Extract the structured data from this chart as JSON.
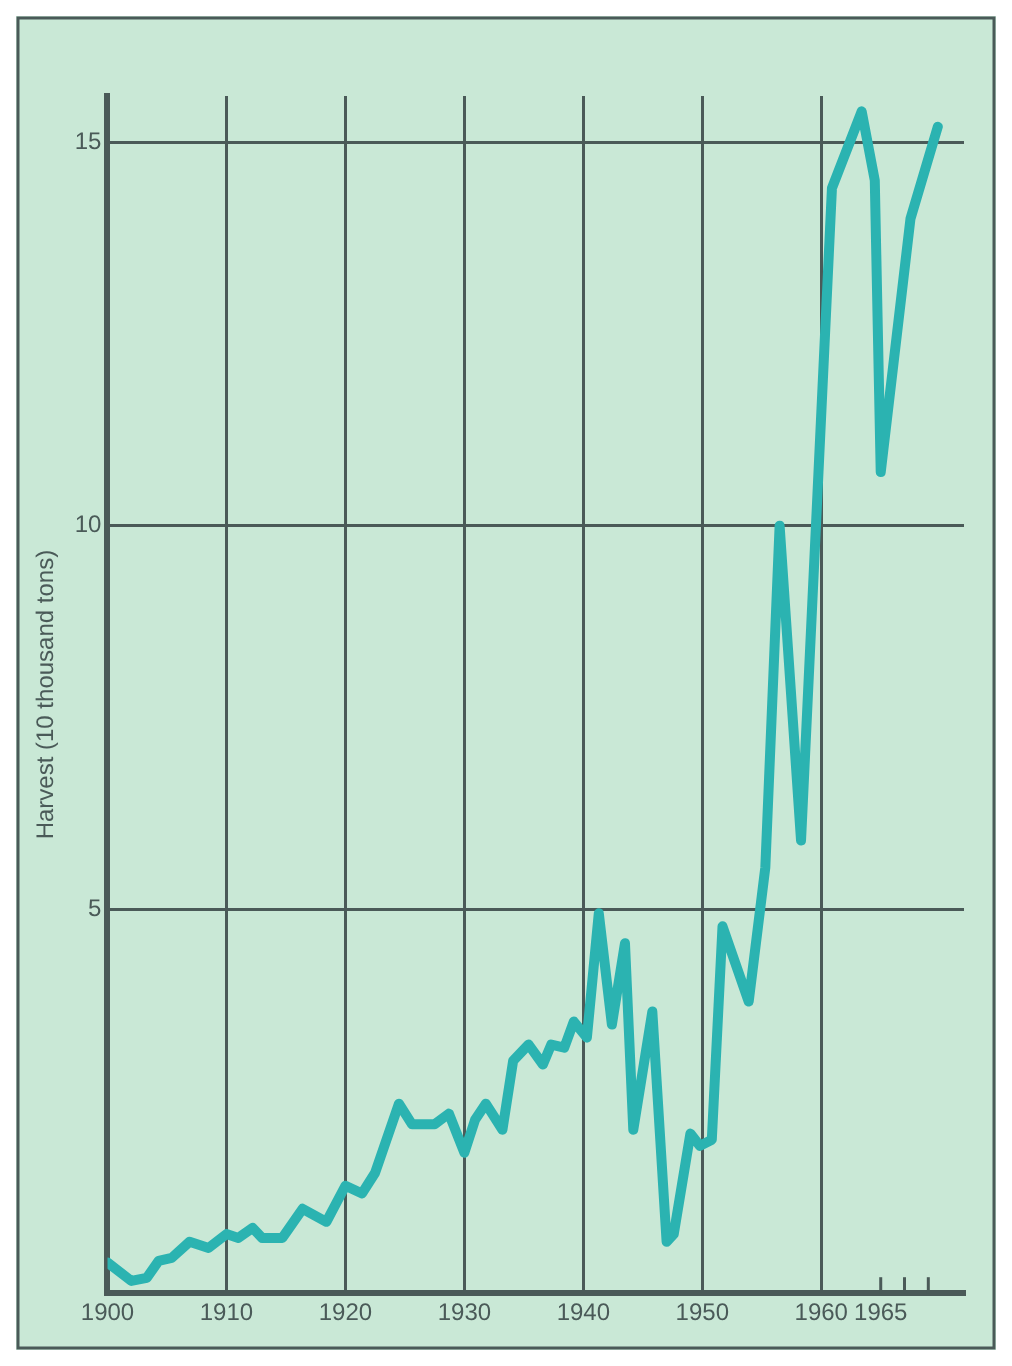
{
  "chart_data": {
    "type": "line",
    "ylabel": "Harvest (10 thousand tons)",
    "series": [
      {
        "color": "#2bb3b1",
        "x": [
          1900,
          1902,
          1903.3,
          1904.3,
          1905.4,
          1906.9,
          1908.5,
          1910,
          1911,
          1912.2,
          1913,
          1914.7,
          1916.4,
          1918.4,
          1920,
          1921.4,
          1922.5,
          1924.5,
          1925.6,
          1927.5,
          1928.7,
          1930,
          1930.9,
          1931.8,
          1933.2,
          1934.1,
          1935.4,
          1936.6,
          1937.3,
          1938.4,
          1939.2,
          1940.3,
          1941.3,
          1942.4,
          1943.5,
          1944.2,
          1945.8,
          1947,
          1947.6,
          1949,
          1949.8,
          1950.8,
          1951.7,
          1953.9,
          1955.3,
          1956.5,
          1958.3,
          1960.9,
          1963.4,
          1964.5,
          1965,
          1967.5,
          1969.8
        ],
        "values": [
          0.4,
          0.16,
          0.2,
          0.42,
          0.46,
          0.67,
          0.59,
          0.77,
          0.72,
          0.85,
          0.72,
          0.72,
          1.1,
          0.93,
          1.4,
          1.3,
          1.57,
          2.47,
          2.2,
          2.2,
          2.34,
          1.83,
          2.26,
          2.47,
          2.13,
          3.03,
          3.24,
          2.98,
          3.24,
          3.2,
          3.54,
          3.33,
          4.95,
          3.5,
          4.56,
          2.13,
          3.67,
          0.67,
          0.77,
          2.08,
          1.92,
          2.0,
          4.78,
          3.8,
          5.55,
          10.0,
          5.9,
          14.4,
          15.4,
          14.5,
          10.7,
          14.0,
          15.2
        ]
      }
    ],
    "xlim": [
      1900,
      1972
    ],
    "xticks": [
      1900,
      1910,
      1920,
      1930,
      1940,
      1950,
      1960,
      1965,
      {
        "value": 1967,
        "label": null
      },
      {
        "value": 1969,
        "label": null
      }
    ],
    "ylim": [
      0,
      15.6
    ],
    "yticks": [
      5,
      10,
      15
    ],
    "grid": true,
    "marker": "none",
    "line_style": "solid"
  }
}
